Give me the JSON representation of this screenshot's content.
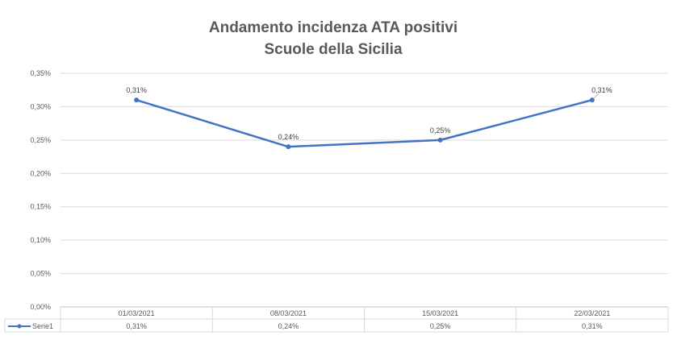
{
  "chart_data": {
    "type": "line",
    "title": "Andamento incidenza ATA positivi",
    "subtitle": "Scuole della Sicilia",
    "categories": [
      "01/03/2021",
      "08/03/2021",
      "15/03/2021",
      "22/03/2021"
    ],
    "series": [
      {
        "name": "Serie1",
        "values": [
          0.0031,
          0.0024,
          0.0025,
          0.0031
        ],
        "labels": [
          "0,31%",
          "0,24%",
          "0,25%",
          "0,31%"
        ],
        "color": "#4472C4"
      }
    ],
    "ylim": [
      0,
      0.0035
    ],
    "yticks": [
      0,
      0.0005,
      0.001,
      0.0015,
      0.002,
      0.0025,
      0.003,
      0.0035
    ],
    "ytick_labels": [
      "0,00%",
      "0,05%",
      "0,10%",
      "0,15%",
      "0,20%",
      "0,25%",
      "0,30%",
      "0,35%"
    ],
    "grid": true,
    "legend": "data-table"
  }
}
